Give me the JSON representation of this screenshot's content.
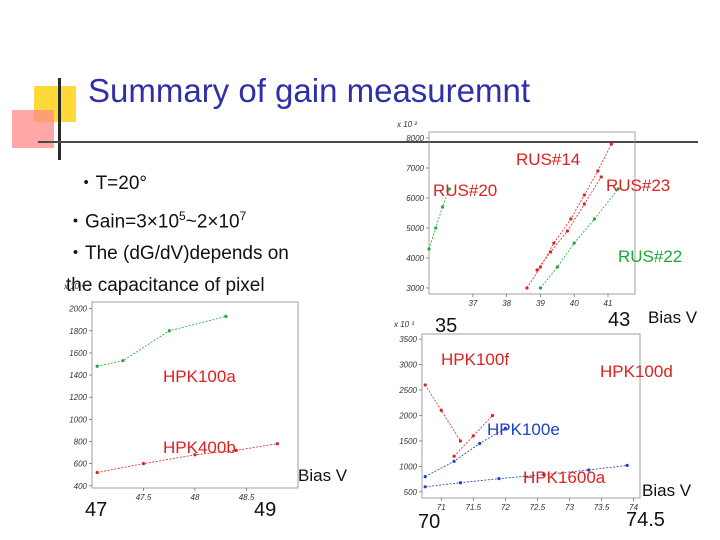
{
  "title": "Summary of gain measuremnt",
  "bullets": {
    "temp": "・T=20°",
    "gain_prefix": "・Gain=3×10",
    "gain_exp1": "5",
    "gain_mid": "~2×10",
    "gain_exp2": "7",
    "cap_line1": "・The (d",
    "cap_G": "G",
    "cap_line1b": "/dV)depends on",
    "cap_line2": "the capacitance of pixel"
  },
  "colors": {
    "title": "#2f2fa8",
    "red": "#e02020",
    "green": "#1aa83a",
    "blue": "#2040c0",
    "pink": "#e0208c",
    "cyan": "#20b0d0"
  },
  "chart_data": [
    {
      "type": "line",
      "panel": "top-right",
      "multiplier": "x 10 ²",
      "ylim": [
        2800,
        8200
      ],
      "xlim": [
        35.7,
        41.8
      ],
      "y_ticks": [
        "8000",
        "7000",
        "6000",
        "5000",
        "4000",
        "3000"
      ],
      "y_tick_values": [
        8000,
        7000,
        6000,
        5000,
        4000,
        3000
      ],
      "x_ticks": [
        "37",
        "38",
        "39",
        "40",
        "41"
      ],
      "x_tick_values": [
        37,
        38,
        39,
        40,
        41
      ],
      "x_end_labels": {
        "left": "35",
        "right": "43",
        "unit": "Bias V"
      },
      "series": [
        {
          "name": "RUS#14",
          "label_color": "#e02020",
          "color": "#e02020",
          "x": [
            38.6,
            39.0,
            39.4,
            39.9,
            40.3,
            40.7,
            41.1
          ],
          "y": [
            3000,
            3700,
            4500,
            5300,
            6100,
            6900,
            7800
          ]
        },
        {
          "name": "RUS#20",
          "label_color": "#e02020",
          "color": "#1aa83a",
          "x": [
            35.7,
            35.9,
            36.1,
            36.3
          ],
          "y": [
            4300,
            5000,
            5700,
            6300
          ]
        },
        {
          "name": "RUS#23",
          "label_color": "#e02020",
          "color": "#e02020",
          "x": [
            38.9,
            39.3,
            39.8,
            40.3,
            40.8
          ],
          "y": [
            3600,
            4200,
            4900,
            5800,
            6700
          ]
        },
        {
          "name": "RUS#22",
          "label_color": "#1aa83a",
          "color": "#1aa83a",
          "x": [
            39.0,
            39.5,
            40.0,
            40.6,
            41.3
          ],
          "y": [
            3000,
            3700,
            4500,
            5300,
            6300
          ]
        }
      ]
    },
    {
      "type": "line",
      "panel": "left",
      "multiplier": "x 10 ⁴",
      "ylim": [
        380,
        2060
      ],
      "xlim": [
        47.0,
        49.0
      ],
      "y_ticks": [
        "2000",
        "1800",
        "1600",
        "1400",
        "1200",
        "1000",
        "800",
        "600",
        "400"
      ],
      "y_tick_values": [
        2000,
        1800,
        1600,
        1400,
        1200,
        1000,
        800,
        600,
        400
      ],
      "x_ticks": [
        "47.5",
        "48",
        "48.5"
      ],
      "x_tick_values": [
        47.5,
        48,
        48.5
      ],
      "x_end_labels": {
        "left": "47",
        "right": "49",
        "unit": "Bias V"
      },
      "series": [
        {
          "name": "HPK100a",
          "label_color": "#e02020",
          "color": "#1aa83a",
          "x": [
            47.05,
            47.3,
            47.75,
            48.3
          ],
          "y": [
            1480,
            1530,
            1800,
            1930
          ]
        },
        {
          "name": "HPK400b",
          "label_color": "#e02020",
          "color": "#e02020",
          "x": [
            47.05,
            47.5,
            48.0,
            48.4,
            48.8
          ],
          "y": [
            520,
            600,
            680,
            720,
            780
          ]
        }
      ]
    },
    {
      "type": "line",
      "panel": "bottom-right",
      "multiplier": "x 10 ³",
      "ylim": [
        380,
        3600
      ],
      "xlim": [
        70.7,
        74.1
      ],
      "y_ticks": [
        "3500",
        "3000",
        "2500",
        "2000",
        "1500",
        "1000",
        "500"
      ],
      "y_tick_values": [
        3500,
        3000,
        2500,
        2000,
        1500,
        1000,
        500
      ],
      "x_ticks": [
        "71",
        "71.5",
        "72",
        "72.5",
        "73",
        "73.5",
        "74"
      ],
      "x_tick_values": [
        71,
        71.5,
        72,
        72.5,
        73,
        73.5,
        74
      ],
      "x_end_labels": {
        "left": "70",
        "right": "74.5",
        "unit": "Bias V"
      },
      "series": [
        {
          "name": "HPK100f",
          "label_color": "#e02020",
          "color": "#e02020",
          "x": [
            70.75,
            71.0,
            71.3
          ],
          "y": [
            2600,
            2100,
            1500
          ]
        },
        {
          "name": "HPK100d",
          "label_color": "#e02020",
          "color": "#e02020",
          "x": [
            71.2,
            71.5,
            71.8
          ],
          "y": [
            1200,
            1600,
            2000
          ]
        },
        {
          "name": "HPK100e",
          "label_color": "#2040c0",
          "color": "#2040c0",
          "x": [
            70.75,
            71.2,
            71.6,
            72.0
          ],
          "y": [
            800,
            1100,
            1450,
            1750
          ]
        },
        {
          "name": "HPK1600a",
          "label_color": "#e02020",
          "color": "#2040c0",
          "x": [
            70.75,
            71.3,
            71.9,
            72.6,
            73.3,
            73.9
          ],
          "y": [
            600,
            680,
            760,
            840,
            930,
            1020
          ]
        }
      ]
    }
  ]
}
